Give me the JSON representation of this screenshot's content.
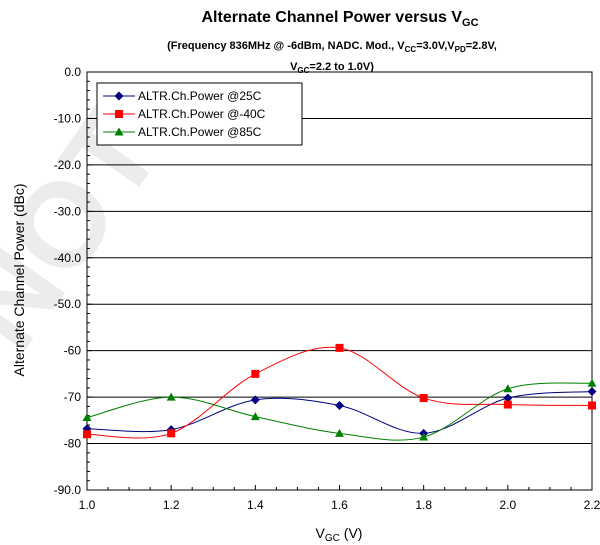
{
  "chart_data": {
    "type": "line",
    "title": {
      "main_prefix": "Alternate Channel Power versus V",
      "main_sub": "GC",
      "line2_a": "(Frequency 836MHz @ -6dBm, NADC. Mod., V",
      "line2_b": "CC",
      "line2_c": "=3.0V,V",
      "line2_d": "PD",
      "line2_e": "=2.8V,",
      "line3_a": "V",
      "line3_b": "GC",
      "line3_c": "=2.2 to 1.0V)"
    },
    "xlabel_prefix": "V",
    "xlabel_sub": "GC",
    "xlabel_suffix": " (V)",
    "ylabel": "Alternate Channel Power (dBc)",
    "xlim": [
      1.0,
      2.2
    ],
    "ylim": [
      -90,
      0
    ],
    "x_ticks": [
      "1.0",
      "1.2",
      "1.4",
      "1.6",
      "1.8",
      "2.0",
      "2.2"
    ],
    "x_tick_values": [
      1.0,
      1.2,
      1.4,
      1.6,
      1.8,
      2.0,
      2.2
    ],
    "y_ticks": [
      "0.0",
      "-10.0",
      "-20.0",
      "-30.0",
      "-40.0",
      "-50.0",
      "-60",
      "-70",
      "-80",
      "-90.0"
    ],
    "y_tick_values": [
      0,
      -10,
      -20,
      -30,
      -40,
      -50,
      -60,
      -70,
      -80,
      -90
    ],
    "grid": "horizontal",
    "legend_position": "top-left",
    "x": [
      1.0,
      1.2,
      1.4,
      1.6,
      1.8,
      2.0,
      2.2
    ],
    "series": [
      {
        "name": "ALTR.Ch.Power @25C",
        "color": "#000080",
        "marker": "diamond",
        "values": [
          -76.8,
          -77.0,
          -70.6,
          -71.8,
          -77.8,
          -70.2,
          -68.8
        ]
      },
      {
        "name": "ALTR.Ch.Power @-40C",
        "color": "#ff0000",
        "marker": "square",
        "values": [
          -78.0,
          -77.8,
          -65.0,
          -59.4,
          -70.2,
          -71.6,
          -71.8
        ]
      },
      {
        "name": "ALTR.Ch.Power @85C",
        "color": "#008000",
        "marker": "triangle",
        "values": [
          -74.4,
          -70.0,
          -74.2,
          -77.8,
          -78.6,
          -68.2,
          -67.0
        ]
      }
    ]
  }
}
